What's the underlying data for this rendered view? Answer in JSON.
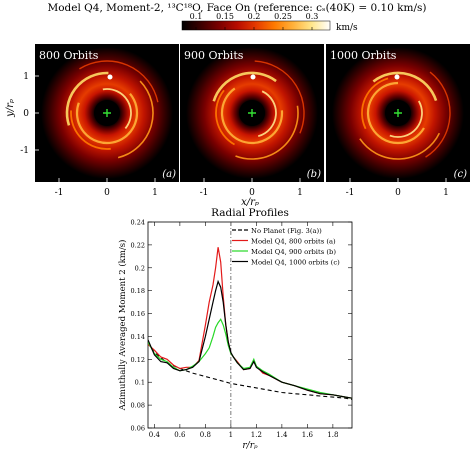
{
  "figure": {
    "title": "Model Q4, Moment-2, ¹³C¹⁸O, Face On (reference: cₛ(40K) = 0.10 km/s)",
    "colorbar": {
      "ticks": [
        "0.1",
        "0.15",
        "0.2",
        "0.25",
        "0.3"
      ],
      "unit": "km/s",
      "colors": [
        "#000000",
        "#3a0000",
        "#7a0000",
        "#b80c00",
        "#e53a00",
        "#ff7a00",
        "#ffb13a",
        "#ffe68a",
        "#ffffff"
      ]
    },
    "panels": [
      {
        "label": "800 Orbits",
        "tag": "(a)"
      },
      {
        "label": "900 Orbits",
        "tag": "(b)"
      },
      {
        "label": "1000 Orbits",
        "tag": "(c)"
      }
    ],
    "images_ylabel": "y/rₚ",
    "images_xlabel": "x/rₚ",
    "images_xticks": [
      "-1",
      "0",
      "1"
    ],
    "images_yticks": [
      "1",
      "0",
      "-1"
    ],
    "star_marker_color": "#34e034"
  },
  "chart_data": {
    "type": "line",
    "title": "Radial Profiles",
    "xlabel": "r/rₚ",
    "ylabel": "Azimuthally Averaged Moment 2 (km/s)",
    "xlim": [
      0.35,
      1.95
    ],
    "ylim": [
      0.06,
      0.24
    ],
    "xticks": [
      "0.4",
      "0.6",
      "0.8",
      "1",
      "1.2",
      "1.4",
      "1.6",
      "1.8"
    ],
    "yticks": [
      "0.06",
      "0.08",
      "0.1",
      "0.12",
      "0.14",
      "0.16",
      "0.18",
      "0.2",
      "0.22",
      "0.24"
    ],
    "vline": 1.0,
    "legend_position": "top-right",
    "series": [
      {
        "name": "No Planet (Fig. 3(a))",
        "color": "#000000",
        "dash": true,
        "x": [
          0.35,
          0.4,
          0.5,
          0.6,
          0.7,
          0.8,
          0.9,
          1.0,
          1.1,
          1.2,
          1.3,
          1.4,
          1.5,
          1.6,
          1.7,
          1.8,
          1.9,
          1.95
        ],
        "y": [
          0.135,
          0.126,
          0.117,
          0.112,
          0.108,
          0.105,
          0.102,
          0.099,
          0.097,
          0.095,
          0.093,
          0.091,
          0.09,
          0.089,
          0.088,
          0.087,
          0.086,
          0.085
        ]
      },
      {
        "name": "Model Q4, 800 orbits (a)",
        "color": "#e31a1a",
        "dash": false,
        "x": [
          0.35,
          0.4,
          0.45,
          0.5,
          0.55,
          0.6,
          0.65,
          0.7,
          0.75,
          0.8,
          0.83,
          0.86,
          0.88,
          0.9,
          0.92,
          0.94,
          0.96,
          0.98,
          1.0,
          1.02,
          1.05,
          1.1,
          1.15,
          1.18,
          1.2,
          1.25,
          1.3,
          1.4,
          1.5,
          1.6,
          1.7,
          1.8,
          1.9,
          1.95
        ],
        "y": [
          0.133,
          0.128,
          0.122,
          0.12,
          0.115,
          0.112,
          0.113,
          0.113,
          0.119,
          0.15,
          0.17,
          0.185,
          0.2,
          0.218,
          0.205,
          0.175,
          0.15,
          0.135,
          0.125,
          0.122,
          0.118,
          0.111,
          0.112,
          0.119,
          0.114,
          0.108,
          0.106,
          0.1,
          0.097,
          0.093,
          0.09,
          0.089,
          0.087,
          0.086
        ]
      },
      {
        "name": "Model Q4, 900 orbits (b)",
        "color": "#27d827",
        "dash": false,
        "x": [
          0.35,
          0.4,
          0.45,
          0.5,
          0.55,
          0.6,
          0.65,
          0.7,
          0.75,
          0.8,
          0.83,
          0.86,
          0.88,
          0.9,
          0.92,
          0.94,
          0.96,
          0.98,
          1.0,
          1.02,
          1.05,
          1.1,
          1.15,
          1.18,
          1.2,
          1.25,
          1.3,
          1.4,
          1.5,
          1.6,
          1.7,
          1.8,
          1.9,
          1.95
        ],
        "y": [
          0.135,
          0.125,
          0.12,
          0.118,
          0.113,
          0.11,
          0.111,
          0.114,
          0.118,
          0.125,
          0.13,
          0.14,
          0.148,
          0.152,
          0.155,
          0.15,
          0.142,
          0.132,
          0.125,
          0.122,
          0.117,
          0.112,
          0.113,
          0.12,
          0.114,
          0.11,
          0.107,
          0.1,
          0.097,
          0.094,
          0.091,
          0.089,
          0.087,
          0.086
        ]
      },
      {
        "name": "Model Q4, 1000 orbits (c)",
        "color": "#000000",
        "dash": false,
        "x": [
          0.35,
          0.4,
          0.45,
          0.5,
          0.55,
          0.6,
          0.65,
          0.7,
          0.75,
          0.8,
          0.83,
          0.86,
          0.88,
          0.9,
          0.92,
          0.94,
          0.96,
          0.98,
          1.0,
          1.02,
          1.05,
          1.1,
          1.15,
          1.18,
          1.2,
          1.25,
          1.3,
          1.4,
          1.5,
          1.6,
          1.7,
          1.8,
          1.9,
          1.95
        ],
        "y": [
          0.137,
          0.124,
          0.118,
          0.117,
          0.112,
          0.11,
          0.111,
          0.113,
          0.118,
          0.14,
          0.155,
          0.17,
          0.18,
          0.188,
          0.183,
          0.17,
          0.15,
          0.135,
          0.126,
          0.122,
          0.117,
          0.111,
          0.112,
          0.118,
          0.113,
          0.109,
          0.106,
          0.1,
          0.097,
          0.093,
          0.09,
          0.089,
          0.087,
          0.086
        ]
      }
    ]
  }
}
